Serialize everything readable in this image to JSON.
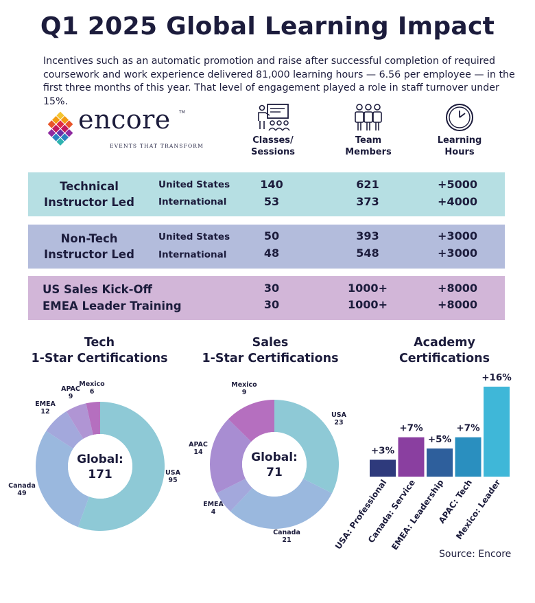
{
  "title": "Q1 2025 Global Learning Impact",
  "intro": "Incentives such as an automatic promotion and raise after successful completion of required coursework and work experience delivered 81,000 learning hours —  6.56 per employee — in the first three months of this year. That level of engagement played a role in staff turnover under 15%.",
  "logo": {
    "word": "encore",
    "tm": "TM",
    "tagline": "EVENTS THAT TRANSFORM"
  },
  "columns": [
    {
      "label1": "Classes/",
      "label2": "Sessions",
      "icon": "classroom-icon"
    },
    {
      "label1": "Team",
      "label2": "Members",
      "icon": "team-icon"
    },
    {
      "label1": "Learning",
      "label2": "Hours",
      "icon": "clock-icon"
    }
  ],
  "table": {
    "tech": {
      "cat1": "Technical",
      "cat2": "Instructor Led",
      "rows": [
        {
          "region": "United States",
          "classes": "140",
          "members": "621",
          "hours": "+5000"
        },
        {
          "region": "International",
          "classes": "53",
          "members": "373",
          "hours": "+4000"
        }
      ]
    },
    "nontech": {
      "cat1": "Non-Tech",
      "cat2": "Instructor Led",
      "rows": [
        {
          "region": "United States",
          "classes": "50",
          "members": "393",
          "hours": "+3000"
        },
        {
          "region": "International",
          "classes": "48",
          "members": "548",
          "hours": "+3000"
        }
      ]
    },
    "events": {
      "rows": [
        {
          "name": "US Sales Kick-Off",
          "classes": "30",
          "members": "1000+",
          "hours": "+8000"
        },
        {
          "name": "EMEA Leader Training",
          "classes": "30",
          "members": "1000+",
          "hours": "+8000"
        }
      ]
    }
  },
  "charts": {
    "tech_title1": "Tech",
    "tech_title2": "1-Star Certifications",
    "sales_title1": "Sales",
    "sales_title2": "1-Star Certifications",
    "academy_title1": "Academy",
    "academy_title2": "Certifications",
    "global_label": "Global:"
  },
  "chart_data": [
    {
      "type": "pie",
      "title": "Tech 1-Star Certifications",
      "center_label": "Global:",
      "total": 171,
      "slices": [
        {
          "label": "USA",
          "value": 95,
          "color": "#8ec9d6"
        },
        {
          "label": "Canada",
          "value": 49,
          "color": "#9ab8de"
        },
        {
          "label": "EMEA",
          "value": 12,
          "color": "#a3a8dc"
        },
        {
          "label": "APAC",
          "value": 9,
          "color": "#b095d4"
        },
        {
          "label": "Mexico",
          "value": 6,
          "color": "#b56fbf"
        }
      ]
    },
    {
      "type": "pie",
      "title": "Sales 1-Star Certifications",
      "center_label": "Global:",
      "total": 71,
      "slices": [
        {
          "label": "USA",
          "value": 23,
          "color": "#8ec9d6"
        },
        {
          "label": "Canada",
          "value": 21,
          "color": "#9ab8de"
        },
        {
          "label": "EMEA",
          "value": 4,
          "color": "#a3a8dc"
        },
        {
          "label": "APAC",
          "value": 14,
          "color": "#a88dd2"
        },
        {
          "label": "Mexico",
          "value": 9,
          "color": "#b56fbf"
        }
      ]
    },
    {
      "type": "bar",
      "title": "Academy Certifications",
      "categories": [
        "USA: Professional",
        "Canada: Service",
        "EMEA: Leadership",
        "APAC: Tech",
        "Mexico: Leader"
      ],
      "values": [
        3,
        7,
        5,
        7,
        16
      ],
      "value_labels": [
        "+3%",
        "+7%",
        "+5%",
        "+7%",
        "+16%"
      ],
      "colors": [
        "#2e3a7c",
        "#8a3fa0",
        "#2e5f9c",
        "#2a8fbf",
        "#3fb7d8"
      ],
      "ylim": [
        0,
        16
      ]
    }
  ],
  "source": "Source: Encore"
}
